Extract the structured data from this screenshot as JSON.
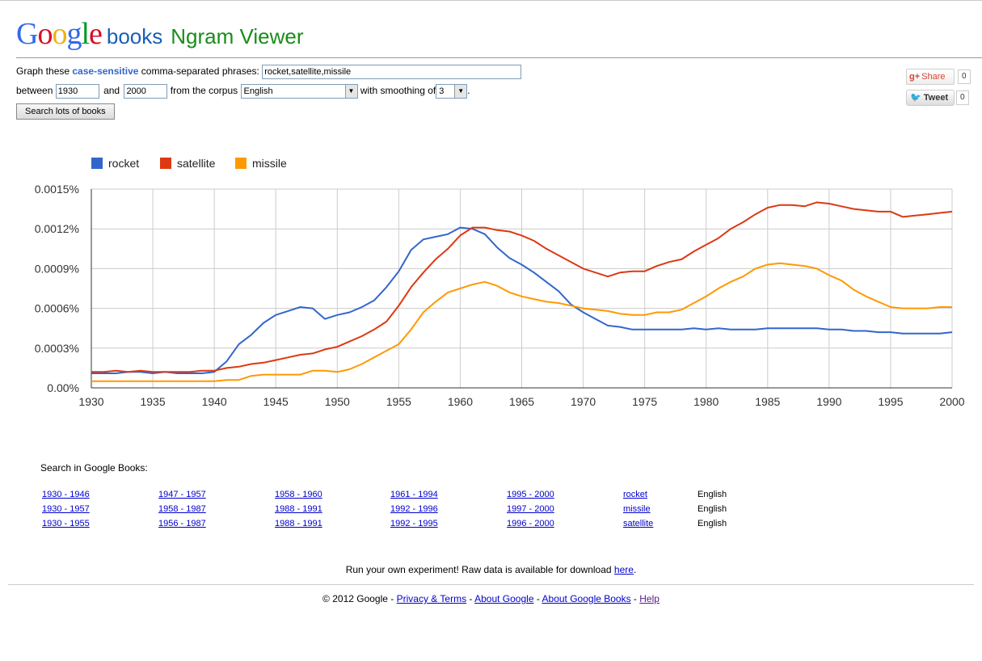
{
  "logo": {
    "letters": [
      {
        "ch": "G",
        "color": "#3369e8"
      },
      {
        "ch": "o",
        "color": "#d50f25"
      },
      {
        "ch": "o",
        "color": "#eeb211"
      },
      {
        "ch": "g",
        "color": "#3369e8"
      },
      {
        "ch": "l",
        "color": "#009925"
      },
      {
        "ch": "e",
        "color": "#d50f25"
      }
    ],
    "books": "books",
    "ngram": "Ngram Viewer"
  },
  "form": {
    "graph_prefix": "Graph these ",
    "case_sensitive": "case-sensitive",
    "graph_suffix": " comma-separated phrases:",
    "phrases": "rocket,satellite,missile",
    "between": "between",
    "start_year": "1930",
    "and": "and",
    "end_year": "2000",
    "from_corpus": "from the corpus",
    "corpus": "English",
    "with_smoothing": "with smoothing of",
    "smoothing": "3",
    "period": ".",
    "search_button": "Search lots of books"
  },
  "social": {
    "share_label": "Share",
    "share_count": "0",
    "tweet_label": "Tweet",
    "tweet_count": "0"
  },
  "chart_data": {
    "type": "line",
    "x": [
      1930,
      1931,
      1932,
      1933,
      1934,
      1935,
      1936,
      1937,
      1938,
      1939,
      1940,
      1941,
      1942,
      1943,
      1944,
      1945,
      1946,
      1947,
      1948,
      1949,
      1950,
      1951,
      1952,
      1953,
      1954,
      1955,
      1956,
      1957,
      1958,
      1959,
      1960,
      1961,
      1962,
      1963,
      1964,
      1965,
      1966,
      1967,
      1968,
      1969,
      1970,
      1971,
      1972,
      1973,
      1974,
      1975,
      1976,
      1977,
      1978,
      1979,
      1980,
      1981,
      1982,
      1983,
      1984,
      1985,
      1986,
      1987,
      1988,
      1989,
      1990,
      1991,
      1992,
      1993,
      1994,
      1995,
      1996,
      1997,
      1998,
      1999,
      2000
    ],
    "series": [
      {
        "name": "rocket",
        "color": "#3366cc",
        "values": [
          1.1e-05,
          1.1e-05,
          1.1e-05,
          1.2e-05,
          1.2e-05,
          1.1e-05,
          1.2e-05,
          1.1e-05,
          1.1e-05,
          1.1e-05,
          1.2e-05,
          2e-05,
          3.3e-05,
          4e-05,
          4.9e-05,
          5.5e-05,
          5.8e-05,
          6.1e-05,
          6e-05,
          5.2e-05,
          5.5e-05,
          5.7e-05,
          6.1e-05,
          6.6e-05,
          7.6e-05,
          8.8e-05,
          0.000104,
          0.000112,
          0.000114,
          0.000116,
          0.000121,
          0.00012,
          0.000116,
          0.000106,
          9.8e-05,
          9.3e-05,
          8.7e-05,
          8e-05,
          7.3e-05,
          6.3e-05,
          5.7e-05,
          5.2e-05,
          4.7e-05,
          4.6e-05,
          4.4e-05,
          4.4e-05,
          4.4e-05,
          4.4e-05,
          4.4e-05,
          4.5e-05,
          4.4e-05,
          4.5e-05,
          4.4e-05,
          4.4e-05,
          4.4e-05,
          4.5e-05,
          4.5e-05,
          4.5e-05,
          4.5e-05,
          4.5e-05,
          4.4e-05,
          4.4e-05,
          4.3e-05,
          4.3e-05,
          4.2e-05,
          4.2e-05,
          4.1e-05,
          4.1e-05,
          4.1e-05,
          4.1e-05,
          4.2e-05
        ]
      },
      {
        "name": "satellite",
        "color": "#dc3912",
        "values": [
          1.2e-05,
          1.2e-05,
          1.3e-05,
          1.2e-05,
          1.3e-05,
          1.2e-05,
          1.2e-05,
          1.2e-05,
          1.2e-05,
          1.3e-05,
          1.3e-05,
          1.5e-05,
          1.6e-05,
          1.8e-05,
          1.9e-05,
          2.1e-05,
          2.3e-05,
          2.5e-05,
          2.6e-05,
          2.9e-05,
          3.1e-05,
          3.5e-05,
          3.9e-05,
          4.4e-05,
          5e-05,
          6.2e-05,
          7.6e-05,
          8.7e-05,
          9.7e-05,
          0.000105,
          0.000115,
          0.000121,
          0.000121,
          0.000119,
          0.000118,
          0.000115,
          0.000111,
          0.000105,
          0.0001,
          9.5e-05,
          9e-05,
          8.7e-05,
          8.4e-05,
          8.7e-05,
          8.8e-05,
          8.8e-05,
          9.2e-05,
          9.5e-05,
          9.7e-05,
          0.000103,
          0.000108,
          0.000113,
          0.00012,
          0.000125,
          0.000131,
          0.000136,
          0.000138,
          0.000138,
          0.000137,
          0.00014,
          0.000139,
          0.000137,
          0.000135,
          0.000134,
          0.000133,
          0.000133,
          0.000129,
          0.00013,
          0.000131,
          0.000132,
          0.000133
        ]
      },
      {
        "name": "missile",
        "color": "#ff9900",
        "values": [
          5e-06,
          5e-06,
          5e-06,
          5e-06,
          5e-06,
          5e-06,
          5e-06,
          5e-06,
          5e-06,
          5e-06,
          5e-06,
          6e-06,
          6e-06,
          9e-06,
          1e-05,
          1e-05,
          1e-05,
          1e-05,
          1.3e-05,
          1.3e-05,
          1.2e-05,
          1.4e-05,
          1.8e-05,
          2.3e-05,
          2.8e-05,
          3.3e-05,
          4.4e-05,
          5.7e-05,
          6.5e-05,
          7.2e-05,
          7.5e-05,
          7.8e-05,
          8e-05,
          7.7e-05,
          7.2e-05,
          6.9e-05,
          6.7e-05,
          6.5e-05,
          6.4e-05,
          6.2e-05,
          6e-05,
          5.9e-05,
          5.8e-05,
          5.6e-05,
          5.5e-05,
          5.5e-05,
          5.7e-05,
          5.7e-05,
          5.9e-05,
          6.4e-05,
          6.9e-05,
          7.5e-05,
          8e-05,
          8.4e-05,
          9e-05,
          9.3e-05,
          9.4e-05,
          9.3e-05,
          9.2e-05,
          9e-05,
          8.5e-05,
          8.1e-05,
          7.4e-05,
          6.9e-05,
          6.5e-05,
          6.1e-05,
          6e-05,
          6e-05,
          6e-05,
          6.1e-05,
          6.1e-05
        ]
      }
    ],
    "y_ticks": [
      "0.00%",
      "0.0003%",
      "0.0006%",
      "0.0009%",
      "0.0012%",
      "0.0015%"
    ],
    "y_tick_values": [
      0,
      3e-05,
      6e-05,
      9e-05,
      0.00012,
      0.00015
    ],
    "x_ticks": [
      1930,
      1935,
      1940,
      1945,
      1950,
      1955,
      1960,
      1965,
      1970,
      1975,
      1980,
      1985,
      1990,
      1995,
      2000
    ],
    "xlim": [
      1930,
      2000
    ],
    "ylim": [
      0,
      0.00015
    ],
    "grid": true,
    "legend": "top-left"
  },
  "search_books": {
    "title": "Search in Google Books:",
    "rows": [
      {
        "cols": [
          "1930 - 1946",
          "1947 - 1957",
          "1958 - 1960",
          "1961 - 1994",
          "1995 - 2000"
        ],
        "term": "rocket",
        "lang": "English"
      },
      {
        "cols": [
          "1930 - 1957",
          "1958 - 1987",
          "1988 - 1991",
          "1992 - 1996",
          "1997 - 2000"
        ],
        "term": "missile",
        "lang": "English"
      },
      {
        "cols": [
          "1930 - 1955",
          "1956 - 1987",
          "1988 - 1991",
          "1992 - 1995",
          "1996 - 2000"
        ],
        "term": "satellite",
        "lang": "English"
      }
    ]
  },
  "raw": {
    "text": "Run your own experiment! Raw data is available for download ",
    "link": "here",
    "end": "."
  },
  "footer": {
    "copy": "© 2012 Google - ",
    "privacy": "Privacy & Terms",
    "sep": " - ",
    "about_google": "About Google",
    "about_books": "About Google Books",
    "help": "Help"
  }
}
